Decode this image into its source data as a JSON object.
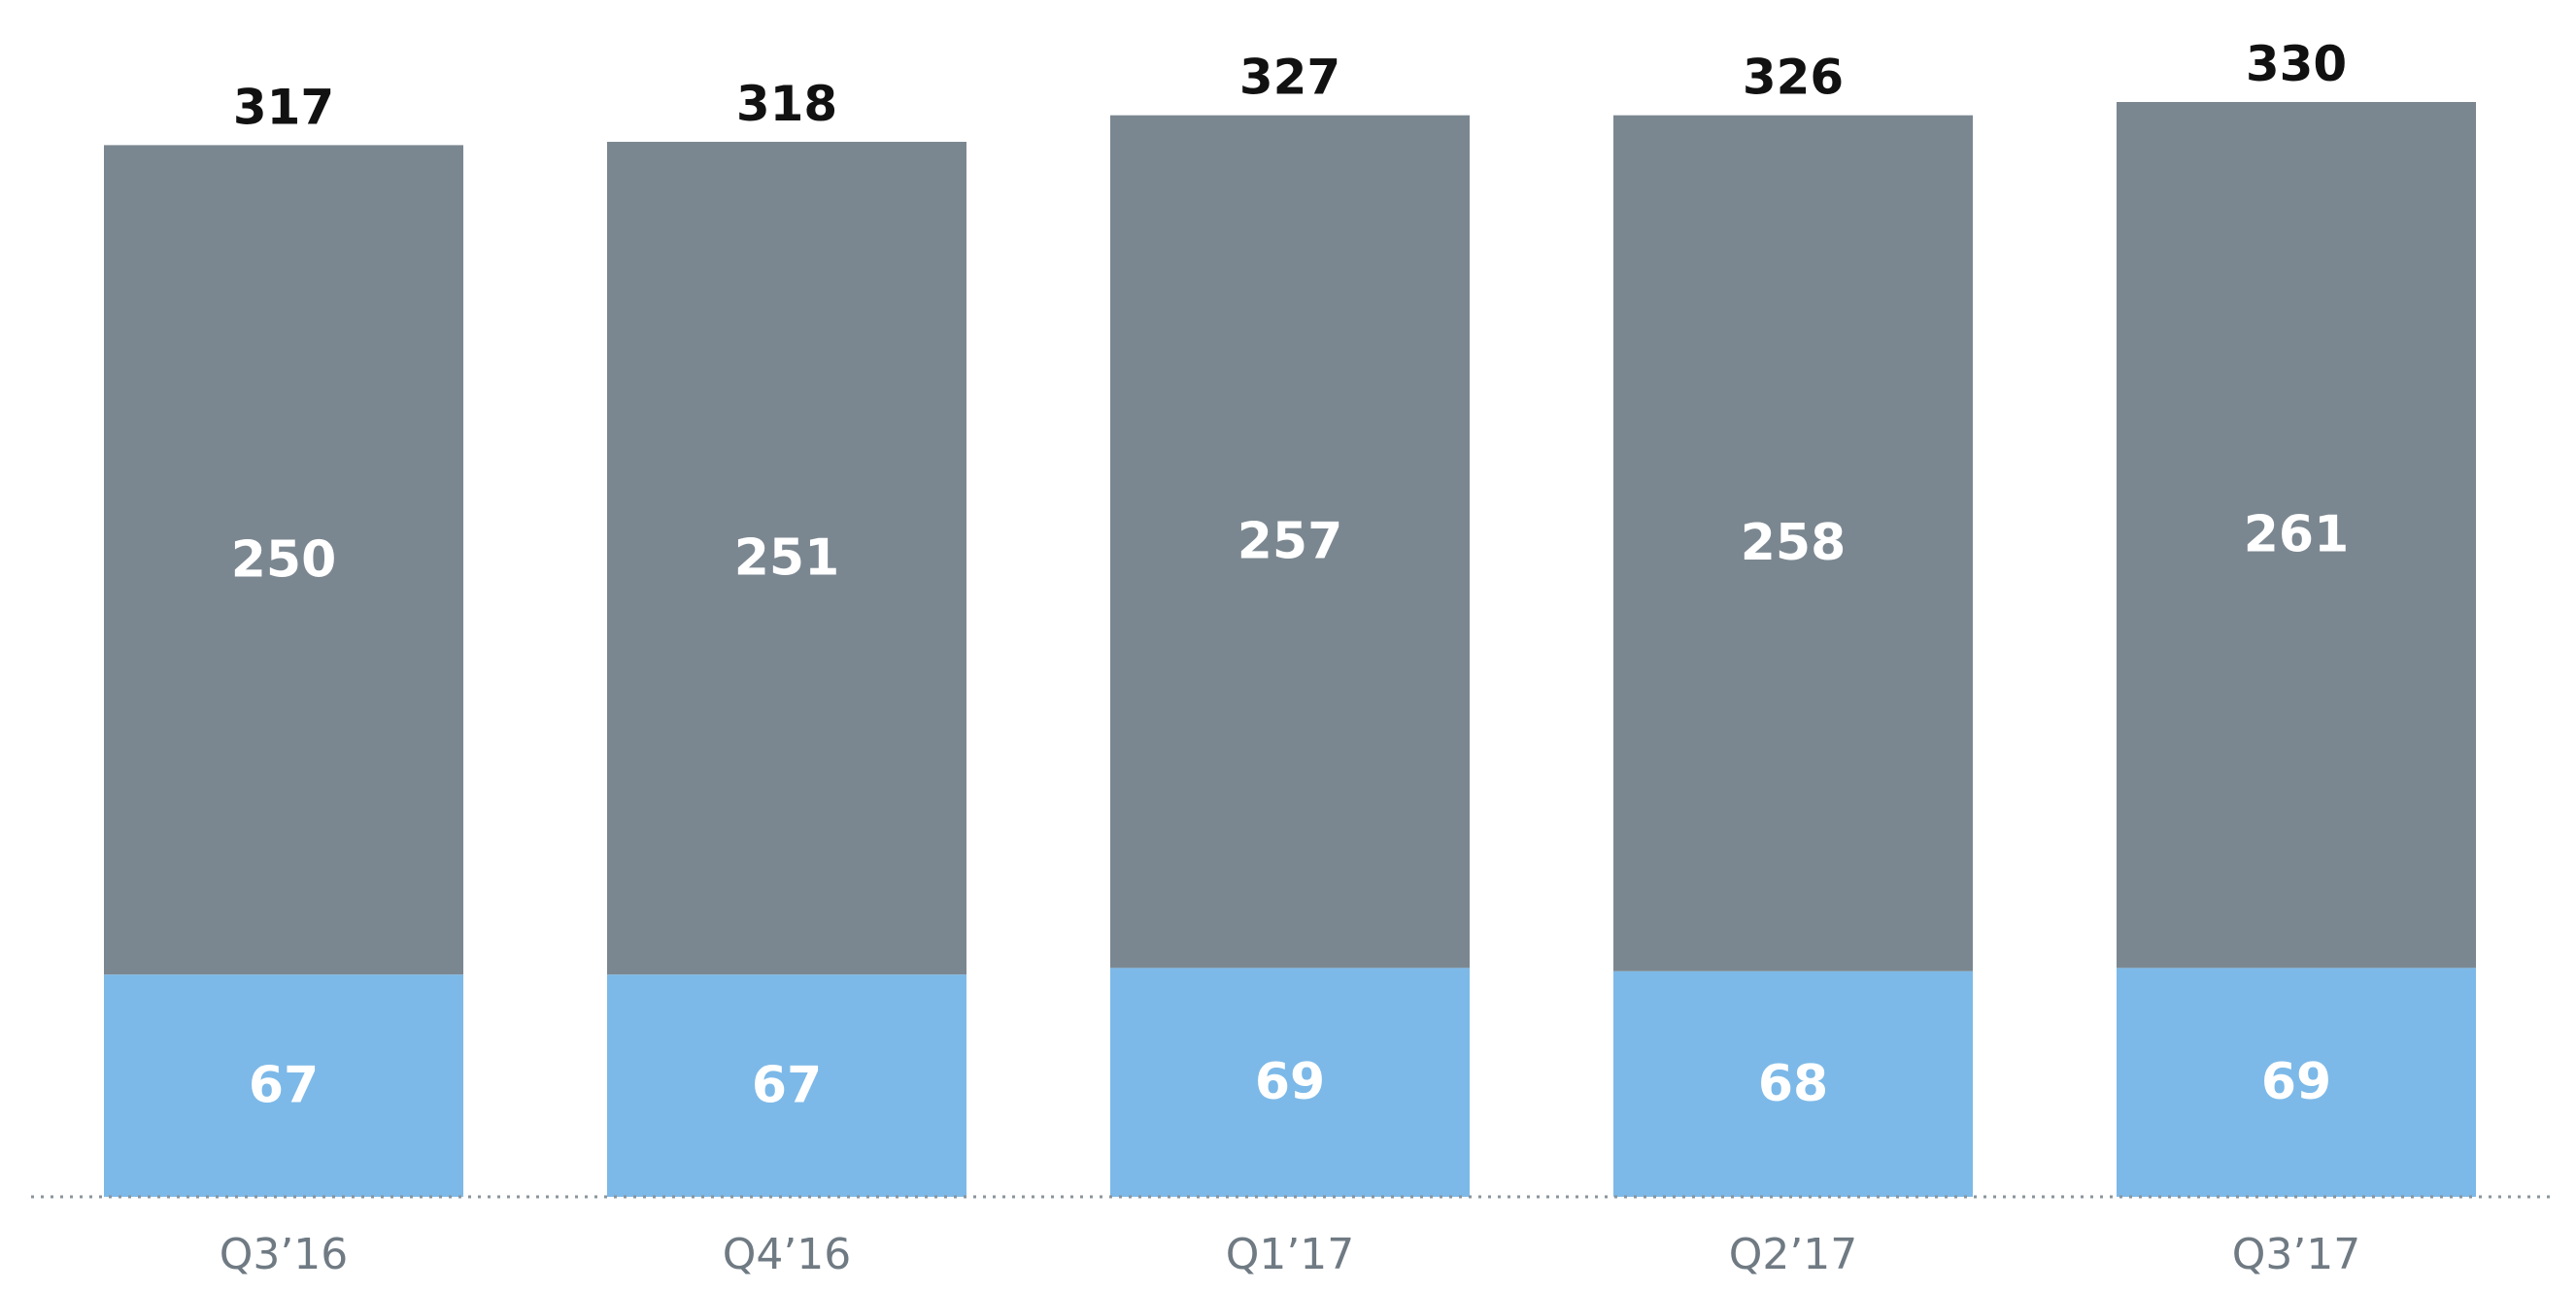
{
  "chart_data": {
    "type": "bar",
    "stacked": true,
    "categories": [
      "Q3’16",
      "Q4’16",
      "Q1’17",
      "Q2’17",
      "Q3’17"
    ],
    "series": [
      {
        "values": [
          67,
          67,
          69,
          68,
          69
        ],
        "color": "#7cb9e8"
      },
      {
        "values": [
          250,
          251,
          257,
          258,
          261
        ],
        "color": "#7b8790"
      }
    ],
    "totals": [
      317,
      318,
      327,
      326,
      330
    ],
    "title": "",
    "xlabel": "",
    "ylabel": "",
    "ylim": [
      0,
      330
    ],
    "grid": false,
    "legend": "none",
    "baseline_style": "dotted",
    "baseline_color": "#8a949b"
  }
}
